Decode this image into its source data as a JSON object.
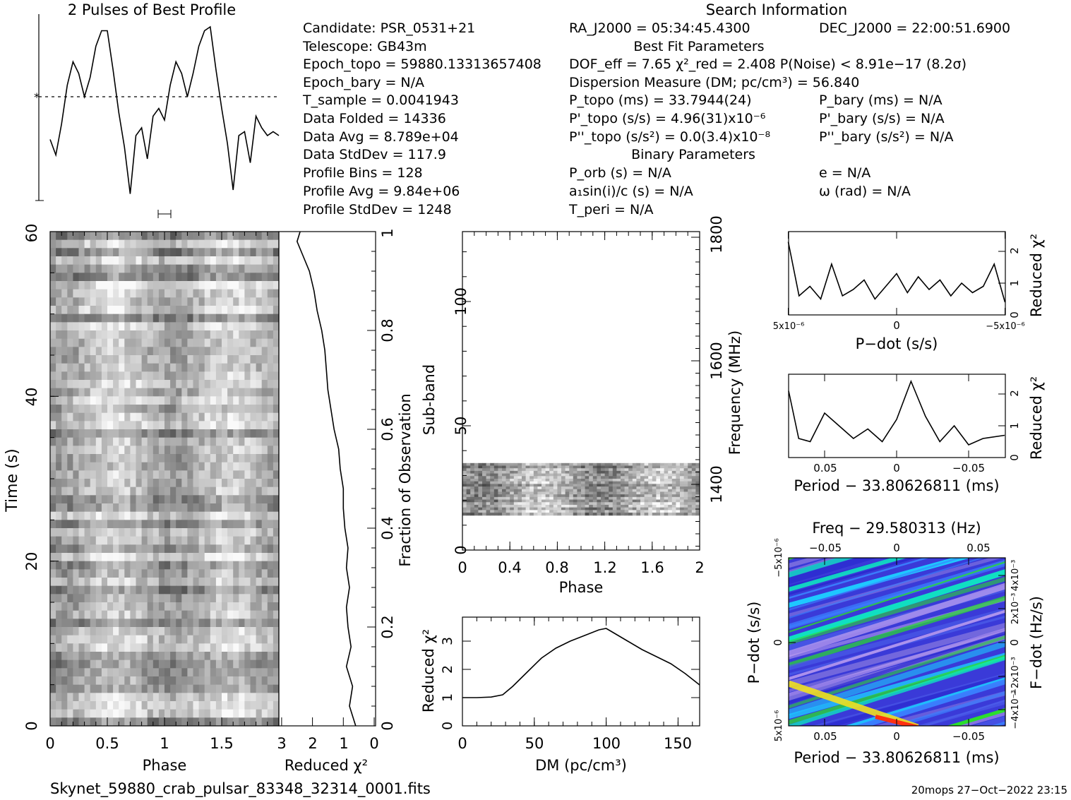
{
  "top_title": "2 Pulses of Best Profile",
  "search_header": "Search Information",
  "info_left": [
    "Candidate:  PSR_0531+21",
    "Telescope:  GB43m",
    "Epoch_topo = 59880.13313657408",
    "Epoch_bary = N/A",
    "T_sample        =  0.0041943",
    "Data Folded    =  14336",
    "Data Avg        =  8.789e+04",
    "Data StdDev   =  117.9",
    "Profile Bins    =  128",
    "Profile Avg     =  9.84e+06",
    "Profile StdDev =  1248"
  ],
  "info_mid": {
    "ra": "RA_J2000 = 05:34:45.4300",
    "best_fit_header": "Best Fit Parameters",
    "dof": "DOF_eff = 7.65  χ²_red = 2.408  P(Noise) < 8.91e−17  (8.2σ)",
    "dm": "Dispersion Measure (DM; pc/cm³) = 56.840",
    "p_topo": "P_topo (ms) =  33.7944(24)",
    "pd_topo": "P'_topo (s/s) =  4.96(31)x10⁻⁶",
    "pdd_topo": "P''_topo (s/s²) = 0.0(3.4)x10⁻⁸",
    "binary_header": "Binary Parameters",
    "porb": "P_orb (s) = N/A",
    "asini": "a₁sin(i)/c (s) = N/A",
    "tperi": "T_peri = N/A"
  },
  "info_right": {
    "dec": "DEC_J2000 = 22:00:51.6900",
    "p_bary": "P_bary (ms) = N/A",
    "pd_bary": "P'_bary (s/s) = N/A",
    "pdd_bary": "P''_bary (s/s²) = N/A",
    "e": "e = N/A",
    "omega": "ω (rad) = N/A"
  },
  "footer_file": "Skynet_59880_crab_pulsar_83348_32314_0001.fits",
  "footer_stamp": "20mops 27−Oct−2022 23:15",
  "chart_data": [
    {
      "type": "line",
      "title": "2 Pulses of Best Profile",
      "x": [
        0,
        0.05,
        0.1,
        0.15,
        0.2,
        0.25,
        0.3,
        0.35,
        0.4,
        0.45,
        0.5,
        0.55,
        0.6,
        0.65,
        0.7,
        0.75,
        0.8,
        0.85,
        0.9,
        0.95,
        1.0,
        1.05,
        1.1,
        1.15,
        1.2,
        1.25,
        1.3,
        1.35,
        1.4,
        1.45,
        1.5,
        1.55,
        1.6,
        1.65,
        1.7,
        1.75,
        1.8,
        1.85,
        1.9,
        1.95,
        2.0
      ],
      "y": [
        -0.55,
        -0.75,
        -0.35,
        0.15,
        0.45,
        0.3,
        0.0,
        0.25,
        0.65,
        0.85,
        0.85,
        0.35,
        -0.2,
        -0.65,
        -1.25,
        -0.5,
        -0.4,
        -0.8,
        -0.25,
        -0.15,
        -0.3,
        0.15,
        0.45,
        0.3,
        0.0,
        0.3,
        0.65,
        0.85,
        0.9,
        0.35,
        -0.15,
        -0.6,
        -1.2,
        -0.5,
        -0.45,
        -0.85,
        -0.25,
        -0.4,
        -0.5,
        -0.45,
        -0.5
      ]
    },
    {
      "type": "heatmap",
      "xlabel": "Phase",
      "ylabel": "Time (s)",
      "xlim": [
        0,
        2
      ],
      "ylim": [
        0,
        60
      ],
      "xticks": [
        "0",
        "0.5",
        "1",
        "1.5"
      ],
      "yticks": [
        "0",
        "20",
        "40",
        "60"
      ]
    },
    {
      "type": "line",
      "xlabel": "Reduced χ²",
      "ylabel": "Fraction of Observation",
      "xlim": [
        3,
        0
      ],
      "ylim": [
        0,
        1
      ],
      "xticks": [
        "3",
        "2",
        "1",
        "0"
      ],
      "yticks": [
        "0",
        "0.2",
        "0.4",
        "0.6",
        "0.8",
        "1"
      ],
      "x": [
        0.6,
        0.8,
        0.7,
        0.9,
        0.75,
        0.85,
        0.9,
        0.8,
        0.9,
        0.85,
        0.95,
        1.0,
        1.0,
        1.1,
        1.15,
        1.3,
        1.4,
        1.5,
        1.55,
        1.6,
        1.7,
        1.85,
        1.95,
        2.1,
        2.3,
        2.5,
        2.4
      ],
      "y": [
        0,
        0.04,
        0.08,
        0.12,
        0.16,
        0.2,
        0.24,
        0.28,
        0.32,
        0.36,
        0.4,
        0.44,
        0.48,
        0.52,
        0.56,
        0.6,
        0.64,
        0.68,
        0.72,
        0.76,
        0.8,
        0.84,
        0.88,
        0.92,
        0.95,
        0.98,
        1.0
      ]
    },
    {
      "type": "heatmap",
      "xlabel": "Phase",
      "ylabel": "Sub-band",
      "y2label": "Frequency (MHz)",
      "xlim": [
        0,
        2
      ],
      "ylim": [
        0,
        128
      ],
      "xticks": [
        "0",
        "0.4",
        "0.8",
        "1.2",
        "1.6",
        "2"
      ],
      "yticks": [
        "0",
        "50",
        "100"
      ],
      "y2ticks": [
        "1400",
        "1600",
        "1800"
      ],
      "filled_subbands": [
        14,
        35
      ]
    },
    {
      "type": "line",
      "xlabel": "DM (pc/cm³)",
      "ylabel": "Reduced χ²",
      "xlim": [
        0,
        165
      ],
      "ylim": [
        0,
        3.8
      ],
      "xticks": [
        "0",
        "50",
        "100",
        "150"
      ],
      "yticks": [
        "0",
        "1",
        "2",
        "3"
      ],
      "x": [
        0,
        10,
        20,
        28,
        35,
        45,
        55,
        65,
        75,
        85,
        95,
        100,
        105,
        115,
        125,
        135,
        145,
        155,
        165
      ],
      "y": [
        1.0,
        1.0,
        1.02,
        1.1,
        1.4,
        1.9,
        2.4,
        2.75,
        3.0,
        3.2,
        3.4,
        3.45,
        3.3,
        3.0,
        2.7,
        2.45,
        2.2,
        1.85,
        1.45
      ]
    },
    {
      "type": "line",
      "xlabel": "P−dot (s/s)",
      "ylabel": "Reduced χ²",
      "xlim": [
        5,
        -5
      ],
      "ylim": [
        0,
        2.6
      ],
      "xticks": [
        "5x10⁻⁶",
        "0",
        "−5x10⁻⁶"
      ],
      "yticks": [
        "0",
        "1",
        "2"
      ],
      "x": [
        5,
        4.5,
        4,
        3.5,
        3,
        2.5,
        2,
        1.5,
        1,
        0.5,
        0,
        -0.5,
        -1,
        -1.5,
        -2,
        -2.5,
        -3,
        -3.5,
        -4,
        -4.5,
        -5
      ],
      "y": [
        2.3,
        0.6,
        0.9,
        0.5,
        1.6,
        0.6,
        0.8,
        1.1,
        0.5,
        0.9,
        1.3,
        0.7,
        1.2,
        0.8,
        1.1,
        0.6,
        1.0,
        0.7,
        0.9,
        1.6,
        0.4
      ]
    },
    {
      "type": "line",
      "xlabel": "Period − 33.80626811 (ms)",
      "ylabel": "Reduced χ²",
      "xlim": [
        0.075,
        -0.075
      ],
      "ylim": [
        0,
        2.6
      ],
      "xticks": [
        "0.05",
        "0",
        "−0.05"
      ],
      "yticks": [
        "0",
        "1",
        "2"
      ],
      "x": [
        0.075,
        0.068,
        0.06,
        0.05,
        0.04,
        0.03,
        0.02,
        0.01,
        0,
        -0.01,
        -0.02,
        -0.03,
        -0.04,
        -0.05,
        -0.06,
        -0.075
      ],
      "y": [
        2.1,
        0.6,
        0.5,
        1.4,
        1.0,
        0.6,
        0.9,
        0.5,
        1.2,
        2.4,
        1.3,
        0.5,
        1.0,
        0.4,
        0.6,
        0.7
      ]
    },
    {
      "type": "heatmap",
      "title": "Freq − 29.580313 (Hz)",
      "xlabel": "Period − 33.80626811 (ms)",
      "ylabel": "P−dot (s/s)",
      "y2label": "F−dot (Hz/s)",
      "xticks": [
        "0.05",
        "0",
        "−0.05"
      ],
      "x2ticks": [
        "−0.05",
        "0",
        "0.05"
      ],
      "yticks": [
        "5x10⁻⁶",
        "0",
        "−5x10⁻⁶"
      ],
      "y2ticks": [
        "−4x10⁻³",
        "−2x10⁻³",
        "0",
        "2x10⁻³",
        "4x10⁻³"
      ]
    }
  ]
}
